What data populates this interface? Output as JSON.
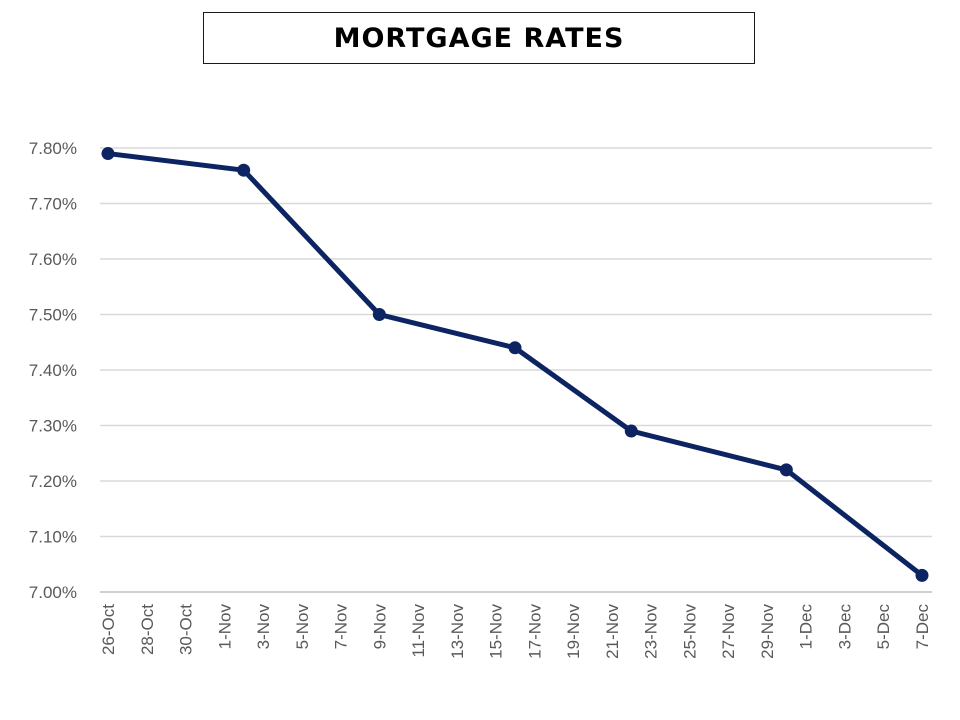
{
  "chart_data": {
    "type": "line",
    "title": "MORTGAGE RATES",
    "xlabel": "",
    "ylabel": "",
    "x_ticks": [
      "26-Oct",
      "28-Oct",
      "30-Oct",
      "1-Nov",
      "3-Nov",
      "5-Nov",
      "7-Nov",
      "9-Nov",
      "11-Nov",
      "13-Nov",
      "15-Nov",
      "17-Nov",
      "19-Nov",
      "21-Nov",
      "23-Nov",
      "25-Nov",
      "27-Nov",
      "29-Nov",
      "1-Dec",
      "3-Dec",
      "5-Dec",
      "7-Dec"
    ],
    "y_ticks": [
      "7.00%",
      "7.10%",
      "7.20%",
      "7.30%",
      "7.40%",
      "7.50%",
      "7.60%",
      "7.70%",
      "7.80%"
    ],
    "ylim": [
      7.0,
      7.8
    ],
    "grid": true,
    "series": [
      {
        "color": "#0d2463",
        "points": [
          {
            "x": "26-Oct",
            "y": 7.79
          },
          {
            "x": "2-Nov",
            "y": 7.76
          },
          {
            "x": "9-Nov",
            "y": 7.5
          },
          {
            "x": "16-Nov",
            "y": 7.44
          },
          {
            "x": "22-Nov",
            "y": 7.29
          },
          {
            "x": "30-Nov",
            "y": 7.22
          },
          {
            "x": "7-Dec",
            "y": 7.03
          }
        ]
      }
    ]
  }
}
